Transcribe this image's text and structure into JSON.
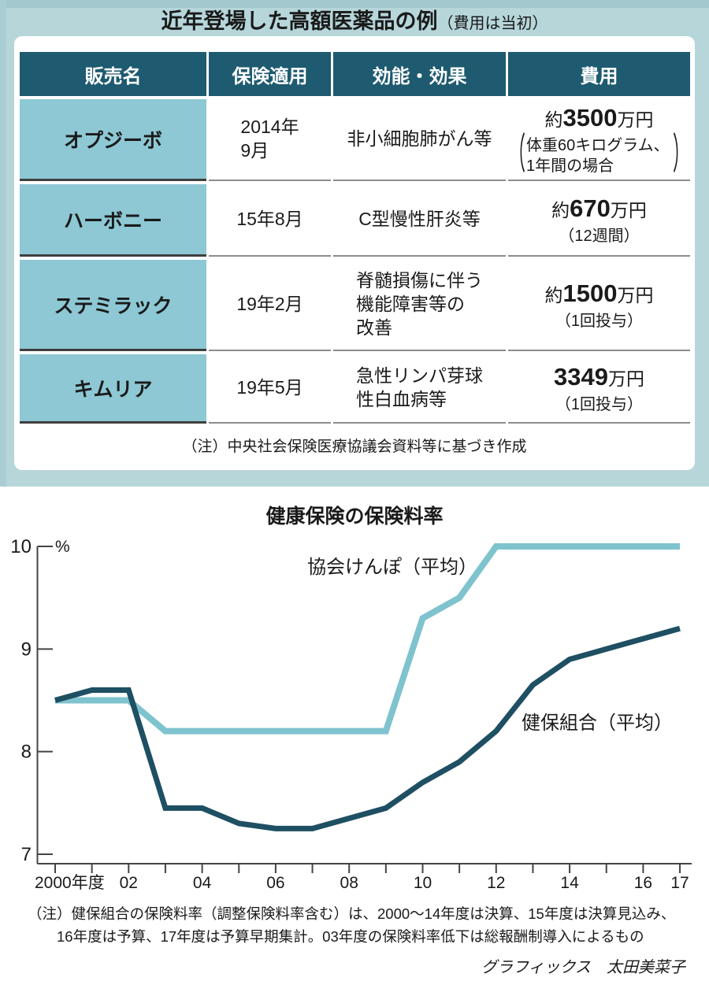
{
  "panel": {
    "title_main": "近年登場した高額医薬品の例",
    "title_sub": "（費用は当初）"
  },
  "table": {
    "headers": [
      "販売名",
      "保険適用",
      "効能・効果",
      "費用"
    ],
    "rows": [
      {
        "name": "オプジーボ",
        "approval": "2014年\n9月",
        "effect": "非小細胞肺がん等",
        "fee_prefix": "約",
        "fee_amount": "3500",
        "fee_unit": "万円",
        "fee_open_paren": "（",
        "fee_note": "体重60キログラム、\n1年間の場合",
        "fee_close_paren": "）"
      },
      {
        "name": "ハーボニー",
        "approval": "15年8月",
        "effect": "C型慢性肝炎等",
        "fee_prefix": "約",
        "fee_amount": "670",
        "fee_unit": "万円",
        "fee_note": "（12週間）"
      },
      {
        "name": "ステミラック",
        "approval": "19年2月",
        "effect": "脊髄損傷に伴う\n機能障害等の\n改善",
        "fee_prefix": "約",
        "fee_amount": "1500",
        "fee_unit": "万円",
        "fee_note": "（1回投与）"
      },
      {
        "name": "キムリア",
        "approval": "19年5月",
        "effect": "急性リンパ芽球\n性白血病等",
        "fee_prefix": "",
        "fee_amount": "3349",
        "fee_unit": "万円",
        "fee_note": "（1回投与）"
      }
    ],
    "note": "（注）中央社会保険医療協議会資料等に基づき作成"
  },
  "chart_data": {
    "type": "line",
    "title": "健康保険の保険料率",
    "ylabel": "%",
    "ylim": [
      7,
      10
    ],
    "yticks": [
      10,
      9,
      8,
      7
    ],
    "grid": false,
    "legend_position": "inline-labels",
    "x": [
      2000,
      2001,
      2002,
      2003,
      2004,
      2005,
      2006,
      2007,
      2008,
      2009,
      2010,
      2011,
      2012,
      2013,
      2014,
      2015,
      2016,
      2017
    ],
    "xtick_labels": [
      {
        "year": 2000,
        "label": "2000年度"
      },
      {
        "year": 2002,
        "label": "02"
      },
      {
        "year": 2004,
        "label": "04"
      },
      {
        "year": 2006,
        "label": "06"
      },
      {
        "year": 2008,
        "label": "08"
      },
      {
        "year": 2010,
        "label": "10"
      },
      {
        "year": 2012,
        "label": "12"
      },
      {
        "year": 2014,
        "label": "14"
      },
      {
        "year": 2016,
        "label": "16"
      },
      {
        "year": 2017,
        "label": "17"
      }
    ],
    "series": [
      {
        "name": "協会けんぽ（平均）",
        "color": "#7ec3ce",
        "values": [
          8.5,
          8.5,
          8.5,
          8.2,
          8.2,
          8.2,
          8.2,
          8.2,
          8.2,
          8.2,
          9.3,
          9.5,
          10,
          10,
          10,
          10,
          10,
          10
        ]
      },
      {
        "name": "健保組合（平均）",
        "color": "#1e4f63",
        "values": [
          8.5,
          8.6,
          8.6,
          7.45,
          7.45,
          7.3,
          7.25,
          7.25,
          7.35,
          7.45,
          7.7,
          7.9,
          8.2,
          8.65,
          8.9,
          9.0,
          9.1,
          9.2
        ]
      }
    ]
  },
  "footer": {
    "note": "（注）健保組合の保険料率（調整保険料率含む）は、2000〜14年度は決算、15年度は決算見込み、\n16年度は予算、17年度は予算早期集計。03年度の保険料率低下は総報酬制導入によるもの",
    "credit": "グラフィックス　太田美菜子"
  },
  "colors": {
    "panel_bg": "#b6d6da",
    "header_bg": "#1e5a70",
    "name_cell_bg": "#8dc8d4",
    "series_light": "#7ec3ce",
    "series_dark": "#1e4f63"
  }
}
